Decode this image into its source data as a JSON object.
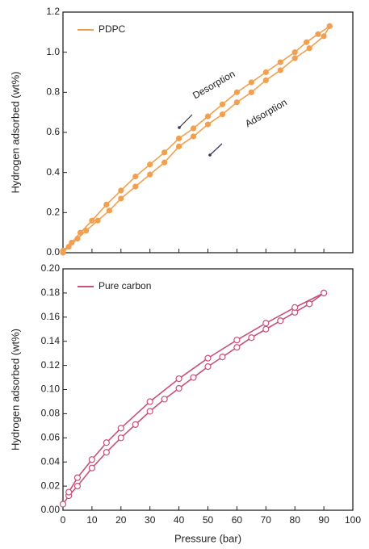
{
  "chart_data": [
    {
      "type": "line",
      "ylabel": "Hydrogen adsorbed (wt%)",
      "xlim": [
        0,
        100
      ],
      "xticks": [
        0,
        10,
        20,
        30,
        40,
        50,
        60,
        70,
        80,
        90,
        100
      ],
      "ylim": [
        0,
        1.2
      ],
      "yticks": [
        {
          "value": 0,
          "label": "0.0"
        },
        0.2,
        0.4,
        0.6,
        0.8,
        {
          "value": 1,
          "label": "1.0"
        },
        1.2
      ],
      "markers": "filled",
      "annotations": [
        "Desorption",
        "Adsorption"
      ],
      "series": [
        {
          "name": "PDPC",
          "color": "#f0a050",
          "x": [
            0,
            2,
            5,
            8,
            12,
            16,
            20,
            25,
            30,
            35,
            40,
            45,
            50,
            55,
            60,
            65,
            70,
            75,
            80,
            85,
            90,
            92
          ],
          "values": [
            0,
            0.03,
            0.07,
            0.11,
            0.16,
            0.21,
            0.27,
            0.33,
            0.39,
            0.45,
            0.53,
            0.58,
            0.64,
            0.69,
            0.75,
            0.8,
            0.86,
            0.91,
            0.97,
            1.02,
            1.08,
            1.13
          ]
        },
        {
          "color": "#f0a050",
          "x": [
            92,
            88,
            84,
            80,
            75,
            70,
            65,
            60,
            55,
            50,
            45,
            40,
            35,
            30,
            25,
            20,
            15,
            10,
            6,
            3,
            0
          ],
          "values": [
            1.13,
            1.09,
            1.05,
            1.0,
            0.95,
            0.9,
            0.85,
            0.8,
            0.74,
            0.68,
            0.62,
            0.57,
            0.5,
            0.44,
            0.38,
            0.31,
            0.24,
            0.16,
            0.1,
            0.05,
            0.01
          ]
        }
      ]
    },
    {
      "type": "line",
      "xlabel": "Pressure (bar)",
      "ylabel": "Hydrogen adsorbed (wt%)",
      "xlim": [
        0,
        100
      ],
      "xticks": [
        0,
        10,
        20,
        30,
        40,
        50,
        60,
        70,
        80,
        90,
        100
      ],
      "ylim": [
        0,
        0.2
      ],
      "yticks": [
        {
          "value": 0,
          "label": "0.00"
        },
        {
          "value": 0.02,
          "label": "0.02"
        },
        {
          "value": 0.04,
          "label": "0.04"
        },
        {
          "value": 0.06,
          "label": "0.06"
        },
        {
          "value": 0.08,
          "label": "0.08"
        },
        {
          "value": 0.1,
          "label": "0.10"
        },
        {
          "value": 0.12,
          "label": "0.12"
        },
        {
          "value": 0.14,
          "label": "0.14"
        },
        {
          "value": 0.16,
          "label": "0.16"
        },
        {
          "value": 0.18,
          "label": "0.18"
        },
        {
          "value": 0.2,
          "label": "0.20"
        }
      ],
      "markers": "open",
      "series": [
        {
          "name": "Pure carbon",
          "color": "#c8507a",
          "x": [
            0,
            2,
            5,
            10,
            15,
            20,
            25,
            30,
            35,
            40,
            45,
            50,
            55,
            60,
            65,
            70,
            75,
            80,
            85,
            90
          ],
          "values": [
            0.005,
            0.012,
            0.02,
            0.035,
            0.048,
            0.06,
            0.071,
            0.082,
            0.092,
            0.101,
            0.11,
            0.119,
            0.127,
            0.135,
            0.143,
            0.15,
            0.157,
            0.164,
            0.171,
            0.18
          ]
        },
        {
          "color": "#c8507a",
          "x": [
            90,
            80,
            70,
            60,
            50,
            40,
            30,
            20,
            15,
            10,
            5,
            2
          ],
          "values": [
            0.18,
            0.168,
            0.155,
            0.141,
            0.126,
            0.109,
            0.09,
            0.068,
            0.056,
            0.042,
            0.027,
            0.015
          ]
        }
      ]
    }
  ]
}
